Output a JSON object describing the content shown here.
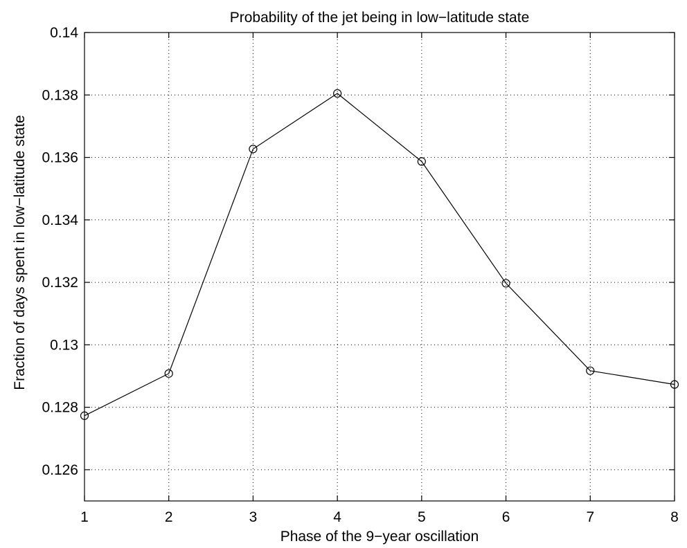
{
  "chart_data": {
    "type": "line",
    "title": "Probability of the jet being in low−latitude state",
    "xlabel": "Phase of the 9−year oscillation",
    "ylabel": "Fraction of days spent in low−latitude state",
    "xlim": [
      1,
      8
    ],
    "ylim": [
      0.125,
      0.14
    ],
    "xticks": [
      1,
      2,
      3,
      4,
      5,
      6,
      7,
      8
    ],
    "xtick_labels": [
      "1",
      "2",
      "3",
      "4",
      "5",
      "6",
      "7",
      "8"
    ],
    "yticks": [
      0.126,
      0.128,
      0.13,
      0.132,
      0.134,
      0.136,
      0.138,
      0.14
    ],
    "ytick_labels": [
      "0.126",
      "0.128",
      "0.13",
      "0.132",
      "0.134",
      "0.136",
      "0.138",
      "0.14"
    ],
    "grid": true,
    "marker": "circle",
    "color": "#000000",
    "series": [
      {
        "x": [
          1,
          2,
          3,
          4,
          5,
          6,
          7,
          8
        ],
        "values": [
          0.12773,
          0.12908,
          0.13627,
          0.13805,
          0.13587,
          0.13197,
          0.12917,
          0.12873
        ]
      }
    ]
  }
}
